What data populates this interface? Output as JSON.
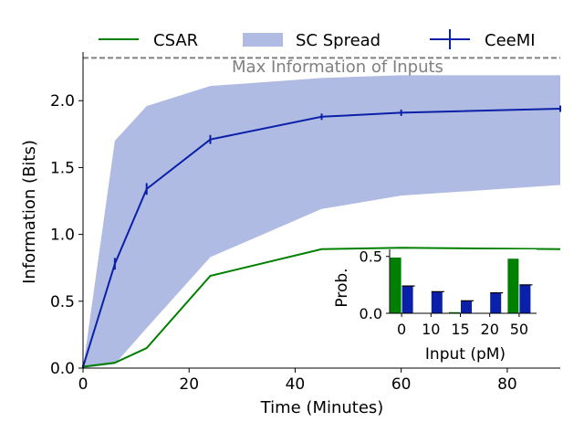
{
  "chart_data": [
    {
      "type": "line",
      "xlabel": "Time (Minutes)",
      "ylabel": "Information (Bits)",
      "xlim": [
        0,
        90
      ],
      "ylim": [
        0,
        2.35
      ],
      "xticks": [
        0,
        20,
        40,
        60,
        80
      ],
      "yticks": [
        0.0,
        0.5,
        1.0,
        1.5,
        2.0
      ],
      "ytick_labels": [
        "0.0",
        "0.5",
        "1.0",
        "1.5",
        "2.0"
      ],
      "grid": false,
      "legend_position": "top",
      "reference_line": {
        "y": 2.32,
        "label": "Max Information of Inputs",
        "color": "#808080",
        "style": "dashed"
      },
      "series": [
        {
          "name": "CSAR",
          "kind": "line",
          "color": "#008000",
          "x": [
            0,
            6,
            12,
            24,
            45,
            60,
            90
          ],
          "y": [
            0.01,
            0.04,
            0.15,
            0.69,
            0.89,
            0.9,
            0.89
          ]
        },
        {
          "name": "SC Spread",
          "kind": "band",
          "color": "#b0bbe3",
          "x": [
            0,
            6,
            12,
            24,
            45,
            60,
            90
          ],
          "y_low": [
            0.0,
            0.03,
            0.3,
            0.83,
            1.19,
            1.29,
            1.37
          ],
          "y_high": [
            0.0,
            1.7,
            1.96,
            2.11,
            2.17,
            2.19,
            2.19
          ]
        },
        {
          "name": "CeeMI",
          "kind": "errorbar",
          "color": "#0a20a8",
          "x": [
            0,
            6,
            12,
            24,
            45,
            60,
            90
          ],
          "y": [
            0.01,
            0.78,
            1.34,
            1.71,
            1.88,
            1.91,
            1.94
          ],
          "yerr": [
            0.0,
            0.03,
            0.03,
            0.02,
            0.01,
            0.01,
            0.01
          ]
        }
      ]
    },
    {
      "type": "bar",
      "xlabel": "Input (pM)",
      "ylabel": "Prob.",
      "categories": [
        "0",
        "10",
        "15",
        "20",
        "50"
      ],
      "ylim": [
        0,
        0.53
      ],
      "yticks": [
        0.0,
        0.5
      ],
      "ytick_labels": [
        "0.0",
        "0.5"
      ],
      "series": [
        {
          "name": "CSAR",
          "color": "#008000",
          "values": [
            0.49,
            0.0,
            0.01,
            0.0,
            0.48
          ]
        },
        {
          "name": "CeeMI",
          "color": "#0a20a8",
          "values": [
            0.24,
            0.19,
            0.11,
            0.18,
            0.25
          ]
        }
      ]
    }
  ]
}
